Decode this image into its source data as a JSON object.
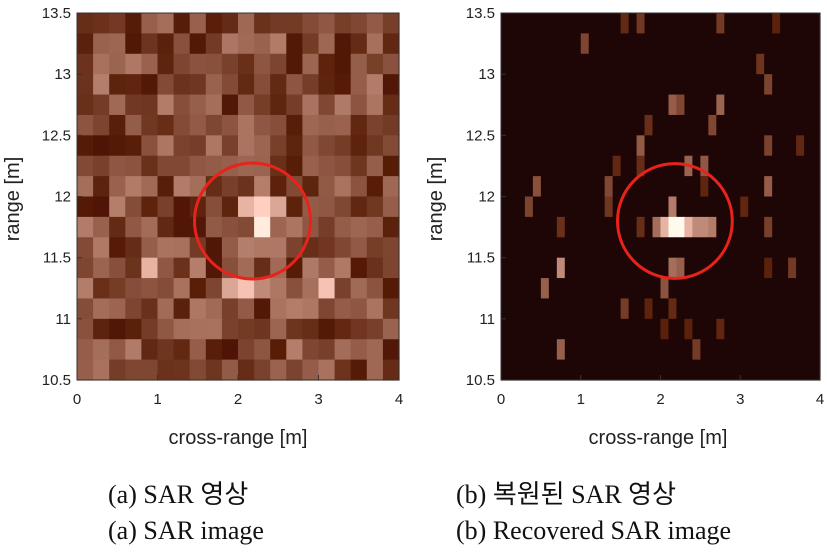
{
  "chart_data": [
    {
      "type": "heatmap",
      "title": "",
      "xlabel": "cross-range [m]",
      "ylabel": "range [m]",
      "xlim": [
        0,
        4
      ],
      "ylim": [
        10.5,
        13.5
      ],
      "xticks": [
        "0",
        "1",
        "2",
        "3",
        "4"
      ],
      "yticks": [
        "10.5",
        "11",
        "11.5",
        "12",
        "12.5",
        "13",
        "13.5"
      ],
      "cell_grid": {
        "x_cells": 20,
        "y_cells": 18
      },
      "colormap": "pink",
      "annotation": {
        "type": "circle",
        "center": [
          2.18,
          11.8
        ],
        "radius_m": 0.72,
        "color": "#e8231c"
      },
      "caption_ko": "(a)  SAR 영상",
      "caption_en": "(a)  SAR image",
      "hot_cells": [
        {
          "x": 2.2,
          "y": 11.75,
          "value": 0.95
        },
        {
          "x": 2.2,
          "y": 11.95,
          "value": 0.85
        },
        {
          "x": 2.0,
          "y": 11.95,
          "value": 0.75
        },
        {
          "x": 2.4,
          "y": 11.95,
          "value": 0.7
        },
        {
          "x": 2.0,
          "y": 11.25,
          "value": 0.8
        },
        {
          "x": 1.8,
          "y": 11.25,
          "value": 0.7
        },
        {
          "x": 3.0,
          "y": 11.25,
          "value": 0.8
        },
        {
          "x": 0.8,
          "y": 11.4,
          "value": 0.75
        },
        {
          "x": 2.2,
          "y": 11.25,
          "value": 0.6
        }
      ]
    },
    {
      "type": "heatmap",
      "title": "",
      "xlabel": "cross-range [m]",
      "ylabel": "range [m]",
      "xlim": [
        0,
        4
      ],
      "ylim": [
        10.5,
        13.5
      ],
      "xticks": [
        "0",
        "1",
        "2",
        "3",
        "4"
      ],
      "yticks": [
        "10.5",
        "11",
        "11.5",
        "12",
        "12.5",
        "13",
        "13.5"
      ],
      "cell_grid": {
        "x_cells": 40,
        "y_cells": 18
      },
      "colormap": "pink",
      "annotation": {
        "type": "circle",
        "center": [
          2.18,
          11.8
        ],
        "radius_m": 0.72,
        "color": "#e8231c"
      },
      "caption_ko": "(b)  복원된 SAR 영상",
      "caption_en": "(b)  Recovered SAR image",
      "hot_cells": [
        {
          "x": 2.15,
          "y": 11.8,
          "value": 1.0
        },
        {
          "x": 2.25,
          "y": 11.8,
          "value": 1.0
        },
        {
          "x": 2.05,
          "y": 11.8,
          "value": 0.75
        },
        {
          "x": 2.35,
          "y": 11.8,
          "value": 0.75
        },
        {
          "x": 2.45,
          "y": 11.8,
          "value": 0.6
        },
        {
          "x": 2.55,
          "y": 11.8,
          "value": 0.6
        },
        {
          "x": 2.65,
          "y": 11.8,
          "value": 0.55
        },
        {
          "x": 1.95,
          "y": 11.8,
          "value": 0.5
        },
        {
          "x": 2.15,
          "y": 11.95,
          "value": 0.55
        },
        {
          "x": 2.15,
          "y": 11.45,
          "value": 0.5
        },
        {
          "x": 0.75,
          "y": 11.45,
          "value": 0.6
        },
        {
          "x": 2.25,
          "y": 11.45,
          "value": 0.45
        },
        {
          "x": 0.55,
          "y": 11.25,
          "value": 0.45
        },
        {
          "x": 2.05,
          "y": 11.25,
          "value": 0.4
        },
        {
          "x": 0.35,
          "y": 11.95,
          "value": 0.35
        },
        {
          "x": 1.35,
          "y": 11.95,
          "value": 0.3
        }
      ]
    }
  ]
}
